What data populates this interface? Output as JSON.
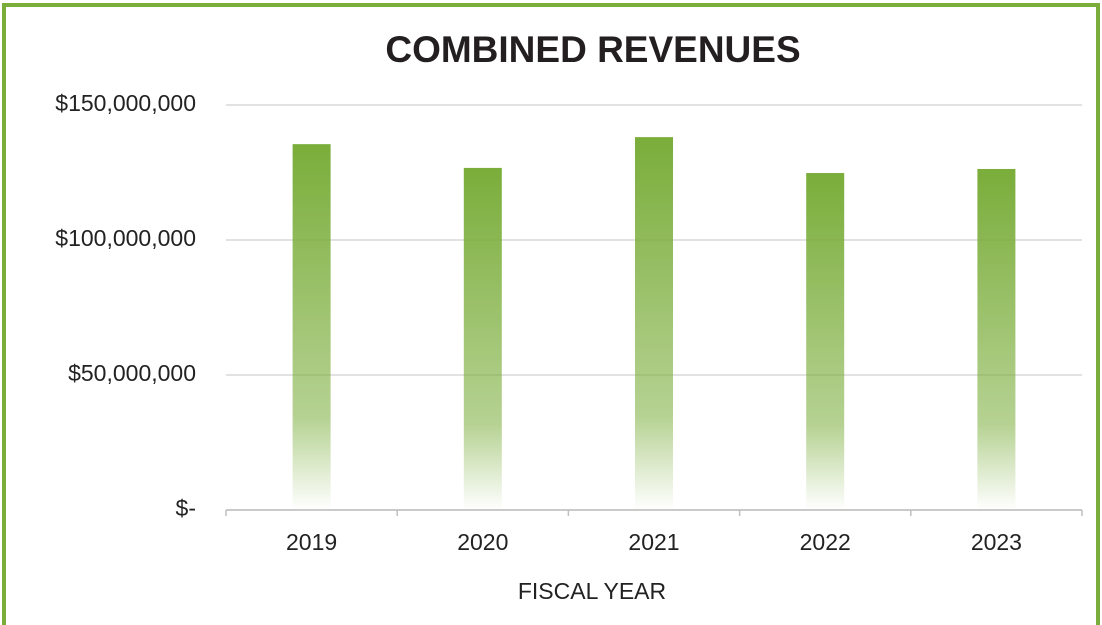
{
  "chart_data": {
    "type": "bar",
    "title": "COMBINED REVENUES",
    "x_label": "FISCAL YEAR",
    "categories": [
      "2019",
      "2020",
      "2021",
      "2022",
      "2023"
    ],
    "values": [
      135500000,
      126700000,
      138100000,
      124800000,
      126300000
    ],
    "color": "#7aad3a",
    "ylim": [
      0,
      150000000
    ],
    "yticks": [
      {
        "value": 0,
        "label": "$-"
      },
      {
        "value": 50000000,
        "label": "$50,000,000"
      },
      {
        "value": 100000000,
        "label": "$100,000,000"
      },
      {
        "value": 150000000,
        "label": "$150,000,000"
      }
    ],
    "grid": true
  }
}
